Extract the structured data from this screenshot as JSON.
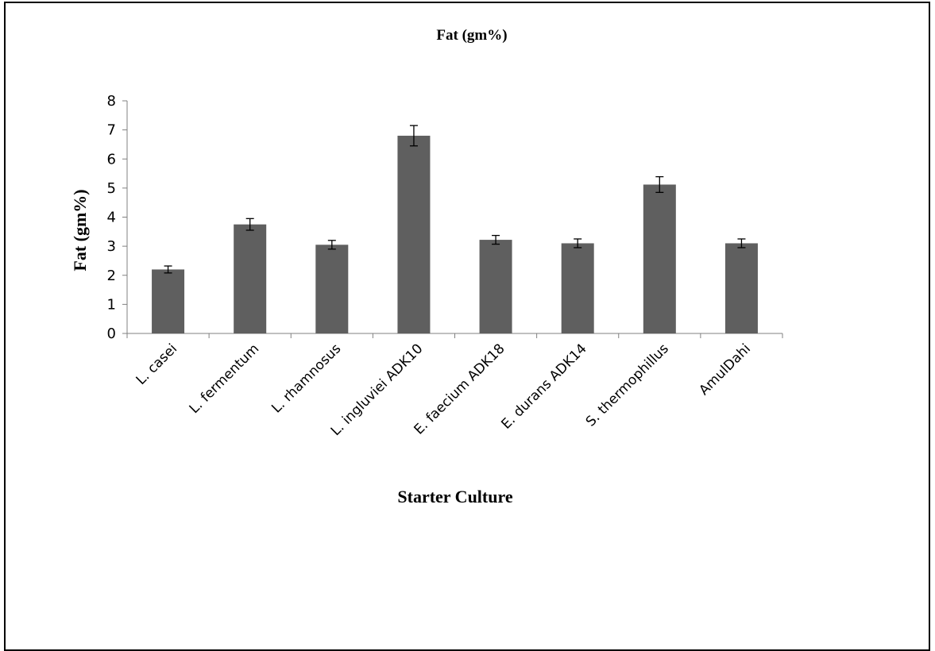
{
  "chart_data": {
    "type": "bar",
    "title": "Fat (gm%)",
    "xlabel": "Starter Culture",
    "ylabel": "Fat (gm%)",
    "ylim": [
      0,
      8
    ],
    "yticks": [
      0,
      1,
      2,
      3,
      4,
      5,
      6,
      7,
      8
    ],
    "grid": false,
    "legend": "none",
    "categories": [
      "L. casei",
      "L.  fermentum",
      "L. rhamnosus",
      "L. ingluviei ADK10",
      "E.  faecium ADK18",
      "E. durans ADK14",
      "S. thermophillus",
      "AmulDahi"
    ],
    "values": [
      2.2,
      3.75,
      3.05,
      6.8,
      3.22,
      3.1,
      5.12,
      3.1
    ],
    "errors": [
      0.12,
      0.2,
      0.15,
      0.35,
      0.15,
      0.15,
      0.27,
      0.15
    ],
    "bar_color": "#5f5f5f"
  }
}
